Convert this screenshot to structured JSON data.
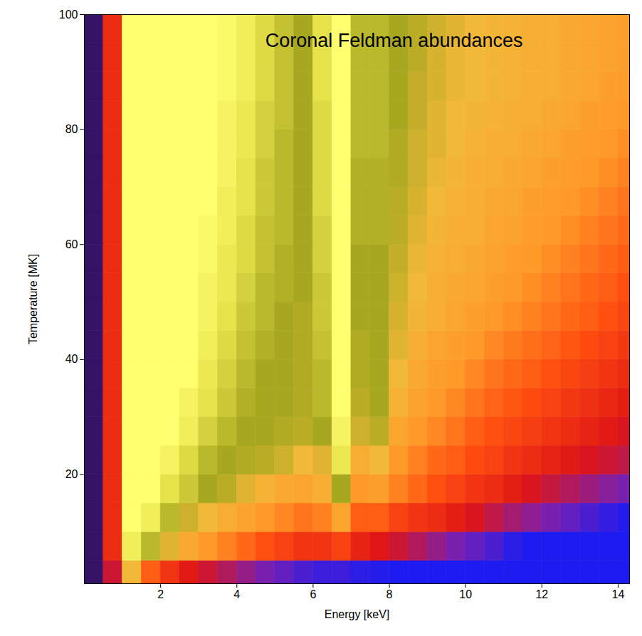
{
  "chart_data": {
    "type": "heatmap",
    "title": "Coronal Feldman abundances",
    "x_label": "Energy [keV]",
    "y_label": "Temperature [MK]",
    "xlim": [
      0,
      14.3
    ],
    "ylim": [
      1,
      100
    ],
    "xticks": [
      2,
      4,
      6,
      8,
      10,
      12,
      14
    ],
    "yticks": [
      20,
      40,
      60,
      80,
      100
    ],
    "energy_bins": [
      0,
      0.5,
      1,
      1.5,
      2,
      2.5,
      3,
      3.5,
      4,
      4.5,
      5,
      5.5,
      6,
      6.5,
      7,
      7.5,
      8,
      8.5,
      9,
      9.5,
      10,
      10.5,
      11,
      11.5,
      12,
      12.5,
      13,
      13.5,
      14,
      14.5
    ],
    "temperature_bins": [
      1,
      5,
      10,
      15,
      20,
      25,
      30,
      35,
      40,
      45,
      50,
      55,
      60,
      65,
      70,
      75,
      80,
      85,
      90,
      95,
      100
    ],
    "color_range": [
      0,
      1
    ],
    "values": [
      [
        0.08,
        0.42,
        0.8,
        0.6,
        0.52,
        0.46,
        0.42,
        0.38,
        0.34,
        0.3,
        0.27,
        0.24,
        0.22,
        0.22,
        0.2,
        0.19,
        0.18,
        0.18,
        0.18,
        0.18,
        0.18,
        0.18,
        0.18,
        0.18,
        0.18,
        0.18,
        0.18,
        0.18,
        0.18
      ],
      [
        0.08,
        0.5,
        0.97,
        0.9,
        0.82,
        0.75,
        0.7,
        0.66,
        0.62,
        0.58,
        0.55,
        0.52,
        0.52,
        0.55,
        0.48,
        0.45,
        0.42,
        0.38,
        0.34,
        0.3,
        0.27,
        0.24,
        0.2,
        0.18,
        0.18,
        0.18,
        0.18,
        0.18,
        0.18
      ],
      [
        0.08,
        0.5,
        1.0,
        0.97,
        0.9,
        0.84,
        0.8,
        0.76,
        0.73,
        0.7,
        0.67,
        0.64,
        0.66,
        0.74,
        0.6,
        0.6,
        0.55,
        0.52,
        0.5,
        0.47,
        0.44,
        0.4,
        0.36,
        0.33,
        0.3,
        0.27,
        0.24,
        0.21,
        0.19
      ],
      [
        0.08,
        0.5,
        1.0,
        1.0,
        0.95,
        0.92,
        0.88,
        0.86,
        0.82,
        0.78,
        0.75,
        0.74,
        0.76,
        0.88,
        0.7,
        0.72,
        0.66,
        0.62,
        0.58,
        0.55,
        0.52,
        0.5,
        0.47,
        0.44,
        0.41,
        0.38,
        0.35,
        0.32,
        0.3
      ],
      [
        0.08,
        0.5,
        1.0,
        1.0,
        0.98,
        0.94,
        0.9,
        0.88,
        0.87,
        0.86,
        0.84,
        0.8,
        0.82,
        0.96,
        0.76,
        0.8,
        0.7,
        0.66,
        0.62,
        0.6,
        0.57,
        0.55,
        0.52,
        0.5,
        0.48,
        0.46,
        0.44,
        0.42,
        0.4
      ],
      [
        0.08,
        0.5,
        1.0,
        1.0,
        1.0,
        0.97,
        0.93,
        0.9,
        0.88,
        0.88,
        0.87,
        0.86,
        0.88,
        0.98,
        0.84,
        0.86,
        0.74,
        0.7,
        0.67,
        0.64,
        0.6,
        0.58,
        0.56,
        0.54,
        0.52,
        0.5,
        0.48,
        0.46,
        0.44
      ],
      [
        0.08,
        0.5,
        1.0,
        1.0,
        1.0,
        0.98,
        0.95,
        0.92,
        0.89,
        0.88,
        0.88,
        0.87,
        0.9,
        1.0,
        0.86,
        0.88,
        0.78,
        0.73,
        0.7,
        0.67,
        0.64,
        0.61,
        0.59,
        0.57,
        0.55,
        0.53,
        0.51,
        0.49,
        0.47
      ],
      [
        0.08,
        0.5,
        1.0,
        1.0,
        1.0,
        1.0,
        0.96,
        0.93,
        0.9,
        0.88,
        0.88,
        0.87,
        0.9,
        1.0,
        0.87,
        0.88,
        0.8,
        0.75,
        0.72,
        0.7,
        0.67,
        0.64,
        0.62,
        0.6,
        0.58,
        0.56,
        0.54,
        0.52,
        0.5
      ],
      [
        0.08,
        0.5,
        1.0,
        1.0,
        1.0,
        1.0,
        0.97,
        0.94,
        0.91,
        0.89,
        0.88,
        0.87,
        0.91,
        1.0,
        0.87,
        0.88,
        0.82,
        0.77,
        0.74,
        0.72,
        0.7,
        0.67,
        0.65,
        0.63,
        0.61,
        0.59,
        0.57,
        0.55,
        0.53
      ],
      [
        0.08,
        0.5,
        1.0,
        1.0,
        1.0,
        1.0,
        0.98,
        0.95,
        0.92,
        0.9,
        0.88,
        0.87,
        0.92,
        1.0,
        0.88,
        0.88,
        0.83,
        0.79,
        0.76,
        0.74,
        0.72,
        0.7,
        0.68,
        0.66,
        0.64,
        0.62,
        0.6,
        0.58,
        0.56
      ],
      [
        0.08,
        0.5,
        1.0,
        1.0,
        1.0,
        1.0,
        0.98,
        0.96,
        0.93,
        0.9,
        0.89,
        0.88,
        0.92,
        1.0,
        0.88,
        0.88,
        0.84,
        0.8,
        0.77,
        0.75,
        0.74,
        0.72,
        0.7,
        0.68,
        0.66,
        0.64,
        0.62,
        0.6,
        0.58
      ],
      [
        0.08,
        0.5,
        1.0,
        1.0,
        1.0,
        1.0,
        0.99,
        0.96,
        0.94,
        0.91,
        0.89,
        0.88,
        0.93,
        1.0,
        0.88,
        0.88,
        0.85,
        0.81,
        0.78,
        0.76,
        0.75,
        0.73,
        0.71,
        0.7,
        0.68,
        0.66,
        0.64,
        0.62,
        0.6
      ],
      [
        0.08,
        0.5,
        1.0,
        1.0,
        1.0,
        1.0,
        0.99,
        0.97,
        0.94,
        0.91,
        0.9,
        0.88,
        0.93,
        1.0,
        0.89,
        0.89,
        0.86,
        0.82,
        0.79,
        0.77,
        0.76,
        0.74,
        0.73,
        0.71,
        0.7,
        0.68,
        0.66,
        0.64,
        0.62
      ],
      [
        0.08,
        0.5,
        1.0,
        1.0,
        1.0,
        1.0,
        1.0,
        0.97,
        0.95,
        0.92,
        0.9,
        0.88,
        0.94,
        1.0,
        0.89,
        0.89,
        0.86,
        0.83,
        0.8,
        0.78,
        0.76,
        0.75,
        0.74,
        0.72,
        0.71,
        0.7,
        0.68,
        0.66,
        0.64
      ],
      [
        0.08,
        0.5,
        1.0,
        1.0,
        1.0,
        1.0,
        1.0,
        0.98,
        0.95,
        0.92,
        0.9,
        0.88,
        0.94,
        1.0,
        0.89,
        0.89,
        0.87,
        0.84,
        0.81,
        0.79,
        0.77,
        0.76,
        0.75,
        0.74,
        0.72,
        0.71,
        0.7,
        0.68,
        0.66
      ],
      [
        0.08,
        0.5,
        1.0,
        1.0,
        1.0,
        1.0,
        1.0,
        0.98,
        0.96,
        0.93,
        0.9,
        0.88,
        0.94,
        1.0,
        0.9,
        0.9,
        0.87,
        0.84,
        0.82,
        0.8,
        0.78,
        0.77,
        0.76,
        0.75,
        0.74,
        0.72,
        0.71,
        0.7,
        0.68
      ],
      [
        0.08,
        0.5,
        1.0,
        1.0,
        1.0,
        1.0,
        1.0,
        0.98,
        0.96,
        0.93,
        0.91,
        0.88,
        0.94,
        1.0,
        0.9,
        0.9,
        0.88,
        0.85,
        0.82,
        0.8,
        0.79,
        0.78,
        0.77,
        0.76,
        0.75,
        0.74,
        0.72,
        0.71,
        0.7
      ],
      [
        0.08,
        0.5,
        1.0,
        1.0,
        1.0,
        1.0,
        1.0,
        0.99,
        0.97,
        0.94,
        0.91,
        0.88,
        0.95,
        1.0,
        0.9,
        0.9,
        0.88,
        0.85,
        0.83,
        0.81,
        0.8,
        0.79,
        0.78,
        0.77,
        0.76,
        0.75,
        0.74,
        0.72,
        0.71
      ],
      [
        0.08,
        0.5,
        1.0,
        1.0,
        1.0,
        1.0,
        1.0,
        0.99,
        0.97,
        0.94,
        0.91,
        0.88,
        0.95,
        1.0,
        0.9,
        0.9,
        0.88,
        0.86,
        0.83,
        0.81,
        0.8,
        0.79,
        0.78,
        0.77,
        0.76,
        0.75,
        0.74,
        0.73,
        0.72
      ],
      [
        0.08,
        0.5,
        1.0,
        1.0,
        1.0,
        1.0,
        1.0,
        0.99,
        0.97,
        0.94,
        0.91,
        0.88,
        0.95,
        1.0,
        0.9,
        0.9,
        0.88,
        0.86,
        0.84,
        0.82,
        0.8,
        0.79,
        0.78,
        0.77,
        0.76,
        0.75,
        0.74,
        0.73,
        0.72
      ]
    ]
  }
}
